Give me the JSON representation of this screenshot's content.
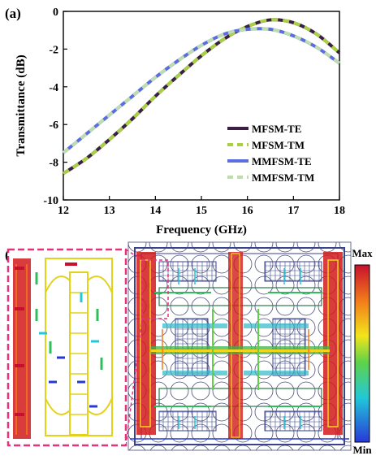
{
  "panel_a_label": "(a)",
  "panel_b_label": "(b)",
  "chart_data": {
    "type": "line",
    "xlabel": "Frequency (GHz)",
    "ylabel": "Transmittance (dB)",
    "xlim": [
      12,
      18
    ],
    "ylim": [
      -10,
      0
    ],
    "x_ticks": [
      "12",
      "13",
      "14",
      "15",
      "16",
      "17",
      "18"
    ],
    "y_ticks": [
      "0",
      "-2",
      "-4",
      "-6",
      "-8",
      "-10"
    ],
    "grid": false,
    "legend_position": "bottom-right",
    "x": [
      12,
      12.5,
      13,
      13.5,
      14,
      14.5,
      15,
      15.5,
      16,
      16.5,
      17,
      17.5,
      18
    ],
    "series": [
      {
        "name": "MFSM-TE",
        "color": "#3a1e45",
        "style": "solid",
        "values": [
          -8.6,
          -7.8,
          -6.8,
          -5.7,
          -4.5,
          -3.4,
          -2.35,
          -1.45,
          -0.8,
          -0.45,
          -0.6,
          -1.2,
          -2.2
        ]
      },
      {
        "name": "MFSM-TM",
        "color": "#a8cf45",
        "style": "dashed",
        "values": [
          -8.6,
          -7.8,
          -6.8,
          -5.7,
          -4.5,
          -3.4,
          -2.35,
          -1.45,
          -0.8,
          -0.45,
          -0.6,
          -1.2,
          -2.2
        ]
      },
      {
        "name": "MMFSM-TE",
        "color": "#5b6ee0",
        "style": "solid",
        "values": [
          -7.5,
          -6.5,
          -5.5,
          -4.5,
          -3.5,
          -2.6,
          -1.8,
          -1.2,
          -0.95,
          -0.95,
          -1.3,
          -1.9,
          -2.75
        ]
      },
      {
        "name": "MMFSM-TM",
        "color": "#bfdcb0",
        "style": "dashed",
        "values": [
          -7.5,
          -6.5,
          -5.5,
          -4.5,
          -3.5,
          -2.6,
          -1.8,
          -1.2,
          -0.95,
          -0.95,
          -1.3,
          -1.9,
          -2.75
        ]
      }
    ]
  },
  "colorbar": {
    "max_label": "Max",
    "min_label": "Min"
  },
  "colors": {
    "inset_border": "#e8317d",
    "axis": "#000000"
  }
}
